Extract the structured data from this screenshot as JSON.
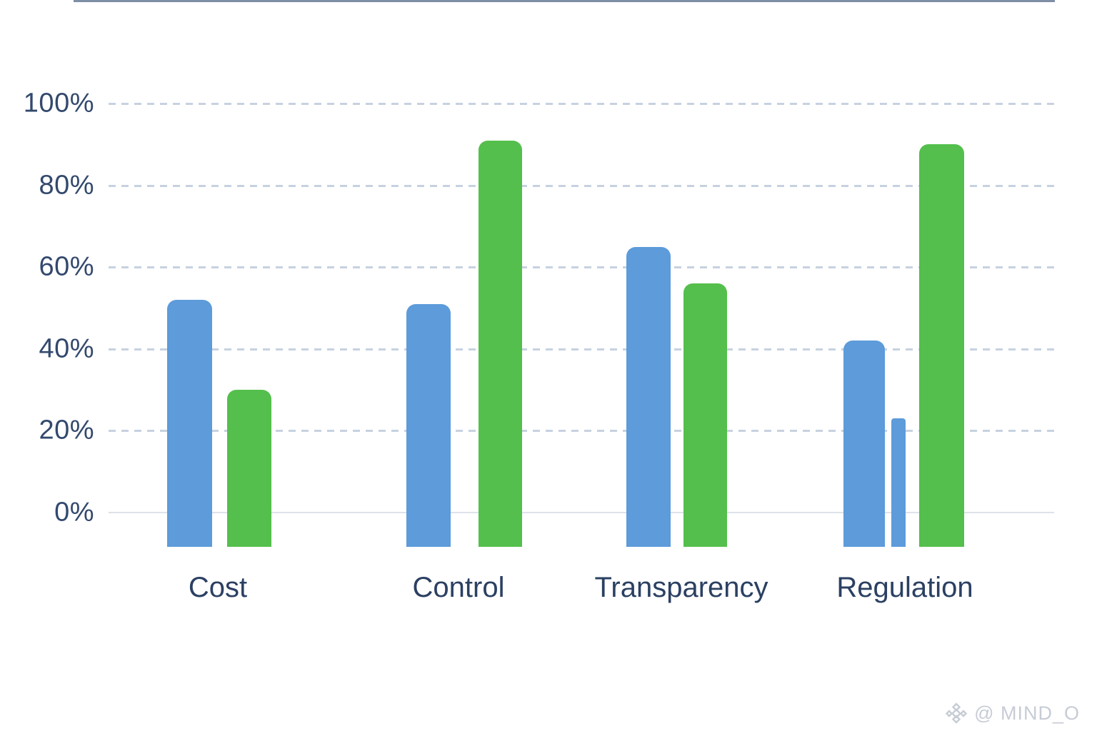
{
  "chart_data": {
    "type": "bar",
    "title": "",
    "xlabel": "",
    "ylabel": "",
    "categories": [
      "Cost",
      "Control",
      "Transparency",
      "Regulation"
    ],
    "series": [
      {
        "name": "blue-series",
        "color": "#5d9bda",
        "values": [
          52,
          51,
          65,
          42
        ]
      },
      {
        "name": "green-series",
        "color": "#54bf4c",
        "values": [
          30,
          91,
          56,
          90
        ]
      }
    ],
    "extra_bars": [
      {
        "category": "Regulation",
        "series": "blue-series",
        "value": 23,
        "note": "thin sliver bar between blue and green"
      }
    ],
    "yticks": [
      "100%",
      "80%",
      "60%",
      "40%",
      "20%",
      "0%"
    ],
    "ylim": [
      0,
      100
    ],
    "grid": "horizontal dashed gridlines at 20% steps, solid light line at 0%",
    "legend_position": "none"
  },
  "colors": {
    "bar_blue": "#5d9bda",
    "bar_green": "#54bf4c",
    "axis_text": "#33496d",
    "category_text": "#2b4062",
    "gridline_dashed": "#c7d2e0",
    "zero_line": "#dde2ea",
    "baseline": "#7f8ea7",
    "watermark": "#c7ccd5",
    "background": "#ffffff"
  },
  "watermark": {
    "icon": "diamond-logo-icon",
    "text": "@ MIND_O"
  }
}
